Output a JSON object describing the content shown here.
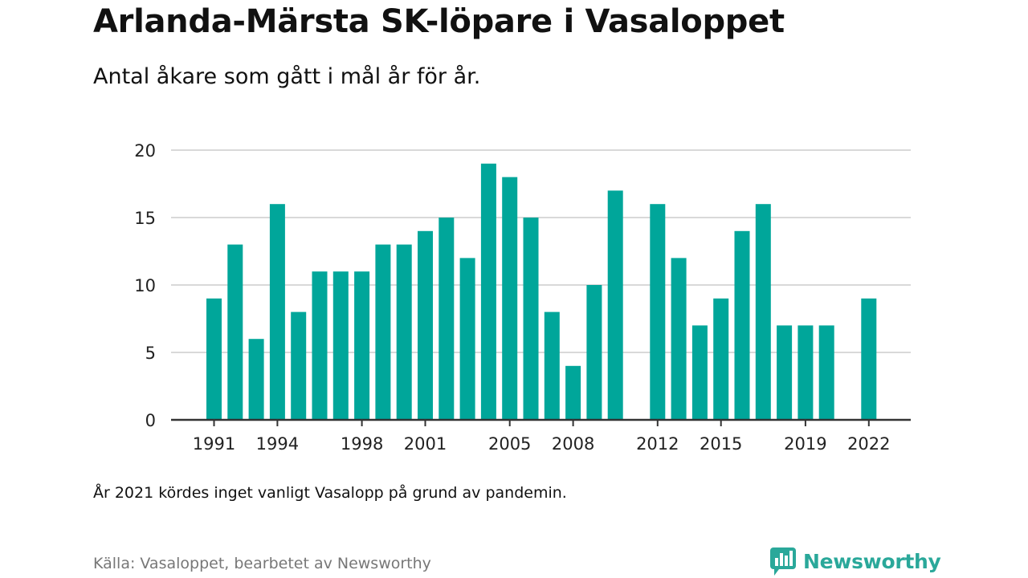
{
  "header": {
    "title": "Arlanda-Märsta SK-löpare i Vasaloppet",
    "subtitle": "Antal åkare som gått i mål år för år."
  },
  "footer": {
    "note": "År 2021 kördes inget vanligt Vasalopp på grund av pandemin.",
    "source": "Källa: Vasaloppet, bearbetet av Newsworthy",
    "brand": "Newsworthy",
    "brand_icon": "newsworthy-bar-chart-icon",
    "brand_color": "#2aa89a"
  },
  "chart_data": {
    "type": "bar",
    "title": "",
    "xlabel": "",
    "ylabel": "",
    "ylim": [
      0,
      20
    ],
    "yticks": [
      0,
      5,
      10,
      15,
      20
    ],
    "xtick_labels": [
      "1991",
      "1994",
      "1998",
      "2001",
      "2005",
      "2008",
      "2012",
      "2015",
      "2019",
      "2022"
    ],
    "bar_color": "#00a69a",
    "grid": true,
    "categories": [
      1991,
      1992,
      1993,
      1994,
      1995,
      1996,
      1997,
      1998,
      1999,
      2000,
      2001,
      2002,
      2003,
      2004,
      2005,
      2006,
      2007,
      2008,
      2009,
      2010,
      2011,
      2012,
      2013,
      2014,
      2015,
      2016,
      2017,
      2018,
      2019,
      2020,
      2021,
      2022
    ],
    "values": [
      9,
      13,
      6,
      16,
      8,
      11,
      11,
      11,
      13,
      13,
      14,
      15,
      12,
      19,
      18,
      15,
      8,
      4,
      10,
      17,
      0,
      16,
      12,
      7,
      9,
      14,
      16,
      7,
      7,
      7,
      0,
      9
    ]
  }
}
